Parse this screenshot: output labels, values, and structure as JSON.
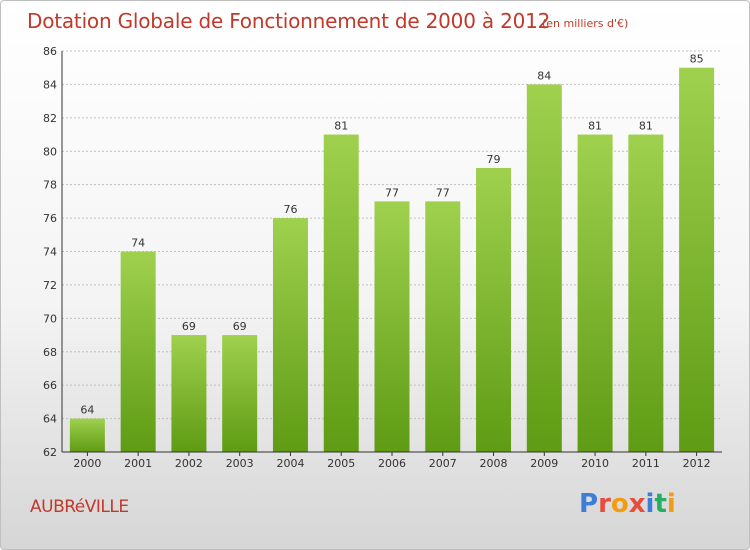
{
  "header": {
    "title": "Dotation Globale de Fonctionnement de 2000 à 2012",
    "unit": "(en milliers d'€)"
  },
  "footer": {
    "commune": "AUBRéVILLE",
    "brand_letters": [
      "P",
      "r",
      "o",
      "x",
      "i",
      "t",
      "i"
    ],
    "brand_colors": [
      "#3b7dd8",
      "#e74c3c",
      "#f39c12",
      "#e74c3c",
      "#3b7dd8",
      "#27ae60",
      "#f39c12"
    ]
  },
  "colors": {
    "bar_top": "#9fd14e",
    "bar_bottom": "#5f9b14",
    "grid": "#bfbfbf",
    "axis": "#333333"
  },
  "chart_data": {
    "type": "bar",
    "title": "Dotation Globale de Fonctionnement de 2000 à 2012",
    "subtitle": "(en milliers d'€)",
    "categories": [
      "2000",
      "2001",
      "2002",
      "2003",
      "2004",
      "2005",
      "2006",
      "2007",
      "2008",
      "2009",
      "2010",
      "2011",
      "2012"
    ],
    "values": [
      64,
      74,
      69,
      69,
      76,
      81,
      77,
      77,
      79,
      84,
      81,
      81,
      85
    ],
    "xlabel": "",
    "ylabel": "",
    "ylim": [
      62,
      86
    ],
    "yticks": [
      62,
      64,
      66,
      68,
      70,
      72,
      74,
      76,
      78,
      80,
      82,
      84,
      86
    ],
    "grid": true,
    "legend": "none"
  }
}
